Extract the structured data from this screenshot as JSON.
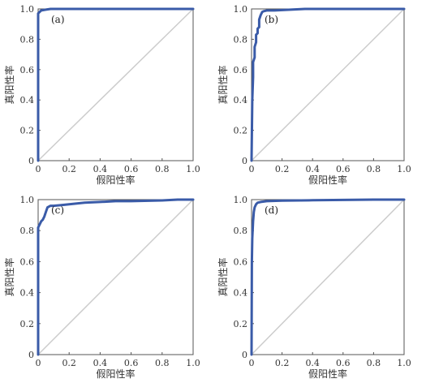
{
  "chart_data": [
    {
      "type": "line",
      "panel_label": "(a)",
      "xlabel": "假阳性率",
      "ylabel": "真阳性率",
      "xlim": [
        0,
        1
      ],
      "ylim": [
        0,
        1
      ],
      "xticks": [
        "0",
        "0.2",
        "0.4",
        "0.6",
        "0.8",
        "1.0"
      ],
      "yticks": [
        "0",
        "0.2",
        "0.4",
        "0.6",
        "0.8",
        "1.0"
      ],
      "grid": false,
      "colors": {
        "roc": "#3a5ba8",
        "diagonal": "#cccccc"
      },
      "series": [
        {
          "x": [
            0,
            0,
            0.01,
            0.02,
            0.05,
            0.08,
            0.3,
            1.0
          ],
          "y": [
            0,
            0.97,
            0.98,
            0.99,
            0.995,
            1.0,
            1.0,
            1.0
          ]
        }
      ]
    },
    {
      "type": "line",
      "panel_label": "(b)",
      "xlabel": "假阳性率",
      "ylabel": "真阳性率",
      "xlim": [
        0,
        1
      ],
      "ylim": [
        0,
        1
      ],
      "xticks": [
        "0",
        "0.2",
        "0.4",
        "0.6",
        "0.8",
        "1.0"
      ],
      "yticks": [
        "0",
        "0.2",
        "0.4",
        "0.6",
        "0.8",
        "1.0"
      ],
      "grid": false,
      "colors": {
        "roc": "#3a5ba8",
        "diagonal": "#cccccc"
      },
      "series": [
        {
          "x": [
            0,
            0.005,
            0.01,
            0.01,
            0.02,
            0.02,
            0.03,
            0.03,
            0.04,
            0.04,
            0.05,
            0.05,
            0.06,
            0.07,
            0.08,
            0.1,
            0.15,
            0.35,
            0.6,
            1.0
          ],
          "y": [
            0,
            0.4,
            0.55,
            0.65,
            0.68,
            0.75,
            0.78,
            0.83,
            0.84,
            0.87,
            0.88,
            0.93,
            0.96,
            0.98,
            0.985,
            0.99,
            0.99,
            1.0,
            1.0,
            1.0
          ]
        }
      ]
    },
    {
      "type": "line",
      "panel_label": "(c)",
      "xlabel": "假阳性率",
      "ylabel": "真阳性率",
      "xlim": [
        0,
        1
      ],
      "ylim": [
        0,
        1
      ],
      "xticks": [
        "0",
        "0.2",
        "0.4",
        "0.6",
        "0.8",
        "1.0"
      ],
      "yticks": [
        "0",
        "0.2",
        "0.4",
        "0.6",
        "0.8",
        "1.0"
      ],
      "grid": false,
      "colors": {
        "roc": "#3a5ba8",
        "diagonal": "#cccccc"
      },
      "series": [
        {
          "x": [
            0,
            0,
            0.01,
            0.02,
            0.03,
            0.04,
            0.05,
            0.06,
            0.08,
            0.1,
            0.15,
            0.2,
            0.25,
            0.3,
            0.4,
            0.5,
            0.6,
            0.8,
            0.9,
            1.0
          ],
          "y": [
            0,
            0.82,
            0.84,
            0.86,
            0.87,
            0.89,
            0.92,
            0.95,
            0.96,
            0.96,
            0.965,
            0.97,
            0.975,
            0.98,
            0.985,
            0.99,
            0.99,
            0.995,
            1.0,
            1.0
          ]
        }
      ]
    },
    {
      "type": "line",
      "panel_label": "(d)",
      "xlabel": "假阳性率",
      "ylabel": "真阳性率",
      "xlim": [
        0,
        1
      ],
      "ylim": [
        0,
        1
      ],
      "xticks": [
        "0",
        "0.2",
        "0.4",
        "0.6",
        "0.8",
        "1.0"
      ],
      "yticks": [
        "0",
        "0.2",
        "0.4",
        "0.6",
        "0.8",
        "1.0"
      ],
      "grid": false,
      "colors": {
        "roc": "#3a5ba8",
        "diagonal": "#cccccc"
      },
      "series": [
        {
          "x": [
            0,
            0.002,
            0.005,
            0.01,
            0.015,
            0.02,
            0.03,
            0.04,
            0.06,
            0.1,
            0.2,
            0.4,
            0.6,
            0.8,
            1.0
          ],
          "y": [
            0,
            0.6,
            0.75,
            0.86,
            0.92,
            0.95,
            0.97,
            0.98,
            0.985,
            0.99,
            0.993,
            0.996,
            0.998,
            1.0,
            1.0
          ]
        }
      ]
    }
  ]
}
